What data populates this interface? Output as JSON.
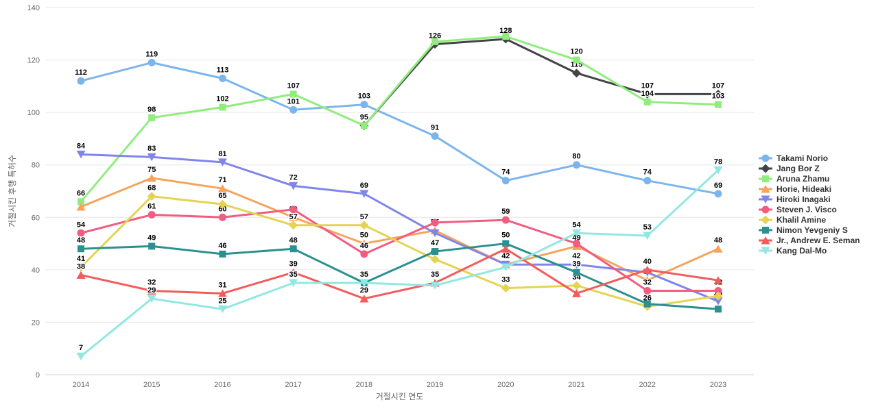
{
  "chart_data": {
    "type": "line",
    "title": "",
    "xlabel": "거절시킨 연도",
    "ylabel": "거절시킨 후행 특허수",
    "x": [
      2014,
      2015,
      2016,
      2017,
      2018,
      2019,
      2020,
      2021,
      2022,
      2023
    ],
    "ylim": [
      0,
      140
    ],
    "yticks": [
      0,
      20,
      40,
      60,
      80,
      100,
      120,
      140
    ],
    "grid": "horizontal-only",
    "legend_position": "right",
    "axis_line_color": "#ccd6eb",
    "grid_color": "#e6e6e6",
    "series": [
      {
        "name": "Takami Norio",
        "color": "#7cb5ec",
        "marker": "circle",
        "values": [
          112,
          119,
          113,
          101,
          103,
          91,
          74,
          80,
          74,
          69
        ],
        "label_shown": [
          1,
          1,
          1,
          1,
          1,
          1,
          1,
          1,
          1,
          1
        ]
      },
      {
        "name": "Jang Bor Z",
        "color": "#434348",
        "marker": "diamond",
        "values": [
          null,
          null,
          null,
          null,
          95,
          126,
          128,
          115,
          107,
          107
        ],
        "label_shown": [
          0,
          0,
          0,
          0,
          0,
          1,
          1,
          1,
          1,
          1
        ]
      },
      {
        "name": "Aruna Zhamu",
        "color": "#90ed7d",
        "marker": "square",
        "values": [
          66,
          98,
          102,
          107,
          95,
          127,
          129,
          120,
          104,
          103
        ],
        "label_shown": [
          1,
          1,
          1,
          1,
          1,
          0,
          0,
          1,
          1,
          1
        ]
      },
      {
        "name": "Horie, Hideaki",
        "color": "#f7a35c",
        "marker": "triangle",
        "values": [
          64,
          75,
          71,
          60,
          50,
          55,
          42,
          49,
          36,
          48
        ],
        "label_shown": [
          0,
          1,
          1,
          1,
          1,
          1,
          0,
          1,
          1,
          1
        ]
      },
      {
        "name": "Hiroki Inagaki",
        "color": "#8085e9",
        "marker": "triangle-down",
        "values": [
          84,
          83,
          81,
          72,
          69,
          54,
          42,
          42,
          39,
          28
        ],
        "label_shown": [
          1,
          1,
          1,
          1,
          1,
          0,
          1,
          1,
          0,
          1
        ]
      },
      {
        "name": "Steven J. Visco",
        "color": "#f15c80",
        "marker": "circle",
        "values": [
          54,
          61,
          60,
          63,
          46,
          58,
          59,
          50,
          32,
          32
        ],
        "label_shown": [
          1,
          1,
          1,
          0,
          1,
          0,
          1,
          0,
          1,
          1
        ]
      },
      {
        "name": "Khalil Amine",
        "color": "#e4d354",
        "marker": "diamond",
        "values": [
          41,
          68,
          65,
          57,
          57,
          44,
          33,
          34,
          26,
          30
        ],
        "label_shown": [
          1,
          1,
          1,
          1,
          1,
          1,
          1,
          1,
          1,
          0
        ]
      },
      {
        "name": "Nimon Yevgeniy S",
        "color": "#2b908f",
        "marker": "square",
        "values": [
          48,
          49,
          46,
          48,
          35,
          47,
          50,
          39,
          27,
          25
        ],
        "label_shown": [
          1,
          1,
          1,
          1,
          1,
          1,
          1,
          1,
          0,
          0
        ]
      },
      {
        "name": "Jr., Andrew E. Seman",
        "color": "#f45b5b",
        "marker": "triangle",
        "values": [
          38,
          32,
          31,
          39,
          29,
          35,
          48,
          31,
          40,
          36
        ],
        "label_shown": [
          1,
          1,
          1,
          1,
          1,
          1,
          0,
          0,
          1,
          0
        ]
      },
      {
        "name": "Kang Dal-Mo",
        "color": "#91e8e1",
        "marker": "triangle-down",
        "values": [
          7,
          29,
          25,
          35,
          35,
          34,
          41,
          54,
          53,
          78
        ],
        "label_shown": [
          1,
          1,
          1,
          1,
          0,
          0,
          0,
          1,
          1,
          1
        ]
      }
    ]
  }
}
